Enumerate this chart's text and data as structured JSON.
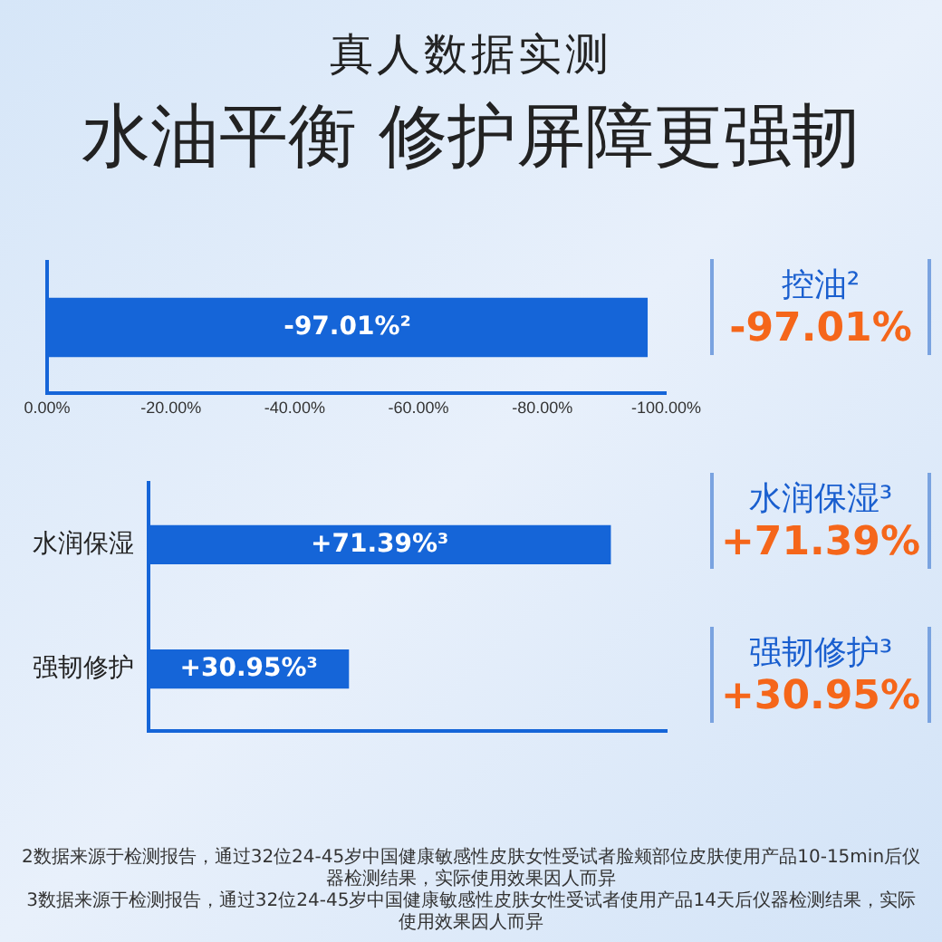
{
  "chart_data": [
    {
      "type": "bar",
      "orientation": "horizontal",
      "subtitle": "真人数据实测",
      "title": "水油平衡 修护屏障更强韧",
      "categories": [
        null
      ],
      "values": [
        -97.01
      ],
      "color": "#1565d8",
      "value_labels": [
        "-97.01%²"
      ],
      "xlim": [
        0,
        -100
      ],
      "xticks": [
        {
          "value": 0,
          "label": "0.00%"
        },
        {
          "value": -20,
          "label": "-20.00%"
        },
        {
          "value": -40,
          "label": "-40.00%"
        },
        {
          "value": -60,
          "label": "-60.00%"
        },
        {
          "value": -80,
          "label": "-80.00%"
        },
        {
          "value": -100,
          "label": "-100.00%"
        }
      ],
      "grid": false,
      "annotations": [
        "控油²",
        "-97.01%"
      ]
    },
    {
      "type": "bar",
      "orientation": "horizontal",
      "categories": [
        "水润保湿",
        "强韧修护"
      ],
      "values": [
        71.39,
        30.95
      ],
      "color": "#1565d8",
      "value_labels": [
        "+71.39%³",
        "+30.95%³"
      ],
      "grid": false,
      "tick_labels": "y",
      "annotations": [
        "水润保湿³",
        "+71.39%",
        "强韧修护³",
        "+30.95%",
        "2数据来源于检测报告，通过32位24-45岁中国健康敏感性皮肤女性受试者脸颊部位皮肤使用产品10-15min后仪器检测结果，实际使用效果因人而异",
        "3数据来源于检测报告，通过32位24-45岁中国健康敏感性皮肤女性受试者使用产品14天后仪器检测结果，实际使用效果因人而异"
      ]
    }
  ]
}
